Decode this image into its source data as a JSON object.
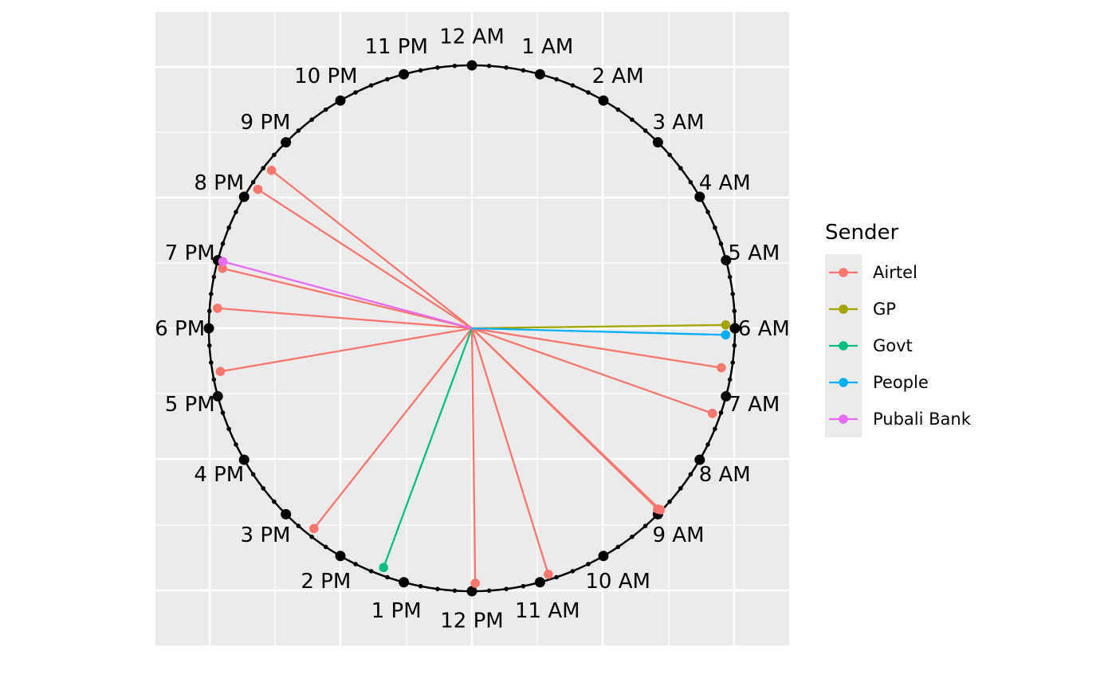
{
  "chart_data": {
    "type": "radial-clock",
    "description_unit": "hours of day (0-24), 12 AM at top, clockwise",
    "title": "",
    "hour_labels": [
      "12 AM",
      "1 AM",
      "2 AM",
      "3 AM",
      "4 AM",
      "5 AM",
      "6 AM",
      "7 AM",
      "8 AM",
      "9 AM",
      "10 AM",
      "11 AM",
      "12 PM",
      "1 PM",
      "2 PM",
      "3 PM",
      "4 PM",
      "5 PM",
      "6 PM",
      "7 PM",
      "8 PM",
      "9 PM",
      "10 PM",
      "11 PM"
    ],
    "minor_ticks_per_hour": 3,
    "grid": true,
    "legend": {
      "title": "Sender",
      "position": "right",
      "entries": [
        {
          "name": "Airtel",
          "color": "#F8766D"
        },
        {
          "name": "GP",
          "color": "#A3A500"
        },
        {
          "name": "Govt",
          "color": "#00BF7D"
        },
        {
          "name": "People",
          "color": "#00B0F6"
        },
        {
          "name": "Pubali Bank",
          "color": "#E76BF3"
        }
      ]
    },
    "series": [
      {
        "name": "Airtel",
        "color": "#F8766D",
        "points": [
          {
            "hour": 20.55,
            "radius": 0.97
          },
          {
            "hour": 20.2,
            "radius": 0.97
          },
          {
            "hour": 18.9,
            "radius": 0.975
          },
          {
            "hour": 18.3,
            "radius": 0.97
          },
          {
            "hour": 17.35,
            "radius": 0.97
          },
          {
            "hour": 6.6,
            "radius": 0.96
          },
          {
            "hour": 7.3,
            "radius": 0.97
          },
          {
            "hour": 8.95,
            "radius": 0.985
          },
          {
            "hour": 8.93,
            "radius": 0.995
          },
          {
            "hour": 10.85,
            "radius": 0.98
          },
          {
            "hour": 11.95,
            "radius": 0.97
          },
          {
            "hour": 14.55,
            "radius": 0.97
          }
        ]
      },
      {
        "name": "GP",
        "color": "#A3A500",
        "points": [
          {
            "hour": 5.95,
            "radius": 0.965
          }
        ]
      },
      {
        "name": "Govt",
        "color": "#00BF7D",
        "points": [
          {
            "hour": 13.35,
            "radius": 0.97
          }
        ]
      },
      {
        "name": "People",
        "color": "#00B0F6",
        "points": [
          {
            "hour": 6.1,
            "radius": 0.965
          }
        ]
      },
      {
        "name": "Pubali Bank",
        "color": "#E76BF3",
        "points": [
          {
            "hour": 19.0,
            "radius": 0.98
          }
        ]
      }
    ]
  }
}
